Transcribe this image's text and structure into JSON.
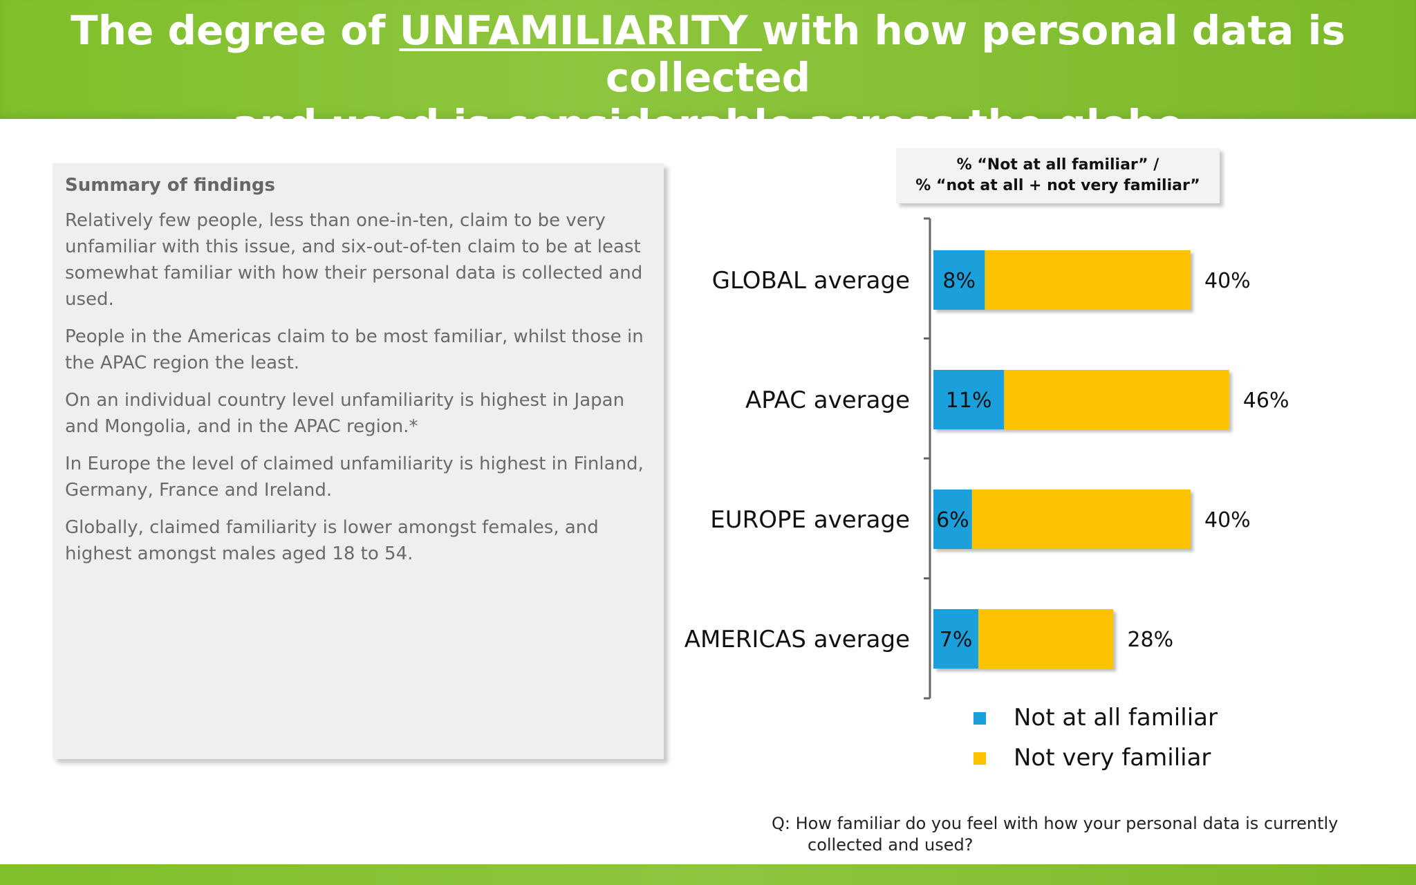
{
  "header": {
    "title_prefix": "The degree of ",
    "title_emphasis": "UNFAMILIARITY ",
    "title_suffix": "with how personal data is collected",
    "title_line2": "and used is considerable across the globe"
  },
  "summary": {
    "heading": "Summary of findings",
    "paragraphs": [
      "Relatively few people, less than one-in-ten, claim to be very unfamiliar with this issue, and six-out-of-ten claim to be at least somewhat familiar with how their personal data is collected and used.",
      "People in the Americas claim to be most familiar, whilst those in the APAC region the least.",
      "On an individual country level unfamiliarity is highest in Japan and Mongolia, and in the APAC region.*",
      "In Europe the level of claimed unfamiliarity is highest in Finland, Germany, France and Ireland.",
      "Globally, claimed familiarity is lower amongst females, and highest amongst males aged 18 to 54."
    ]
  },
  "chart_title": {
    "line1": "% “Not at all familiar” /",
    "line2": "% “not at all + not very familiar”"
  },
  "chart_data": {
    "type": "bar",
    "orientation": "horizontal",
    "stacked": true,
    "title": "% “Not at all familiar” / % “not at all + not very familiar”",
    "categories": [
      "GLOBAL average",
      "APAC average",
      "EUROPE average",
      "AMERICAS average"
    ],
    "series": [
      {
        "name": "Not at all familiar",
        "values": [
          8,
          11,
          6,
          7
        ],
        "color": "#1aa0dc"
      },
      {
        "name": "Not very familiar",
        "values": [
          32,
          35,
          34,
          21
        ],
        "color": "#fdc300"
      }
    ],
    "inner_labels": [
      "8%",
      "11%",
      "6%",
      "7%"
    ],
    "totals": [
      40,
      46,
      40,
      28
    ],
    "total_labels": [
      "40%",
      "46%",
      "40%",
      "28%"
    ],
    "xlim": [
      0,
      50
    ],
    "grid": false,
    "legend_position": "bottom"
  },
  "legend": {
    "items": [
      {
        "label": "Not at all familiar",
        "color": "#1aa0dc"
      },
      {
        "label": "Not very familiar",
        "color": "#fdc300"
      }
    ]
  },
  "footnote": {
    "line1": "Q:  How familiar do you feel with how your personal data is currently",
    "line2": "collected and used?"
  }
}
